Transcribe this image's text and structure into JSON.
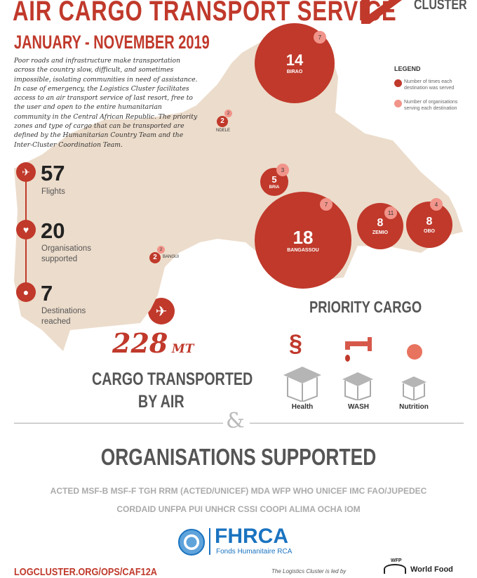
{
  "header": {
    "title": "AIR CARGO TRANSPORT SERVICE",
    "subtitle": "JANUARY - NOVEMBER 2019",
    "logo_text": "CLUSTER",
    "intro": "Poor roads and infrastructure make transportation across the country slow, difficult, and sometimes impossible, isolating communities in need of assistance. In case of emergency, the Logistics Cluster facilitates access to an air transport service of last resort, free to the user and open to the entire humanitarian community in the Central African Republic. The priority zones and type of cargo that can be transported are defined by the Humanitarian Country Team and the Inter-Cluster Coordination Team."
  },
  "colors": {
    "accent": "#c0392b",
    "badge": "#f1948a",
    "map": "#ecdccb",
    "text_gray": "#555555"
  },
  "legend": {
    "title": "LEGEND",
    "items": [
      {
        "label": "Number of times each destination was served",
        "color": "#c0392b"
      },
      {
        "label": "Number of organisations serving each destination",
        "color": "#f1948a"
      }
    ]
  },
  "destinations": [
    {
      "name": "BIRAO",
      "served": "14",
      "orgs": "7"
    },
    {
      "name": "NDELE",
      "served": "2",
      "orgs": "2"
    },
    {
      "name": "BRIA",
      "served": "5",
      "orgs": "3"
    },
    {
      "name": "BANGASSOU",
      "served": "18",
      "orgs": "7"
    },
    {
      "name": "ZEMIO",
      "served": "8",
      "orgs": "11"
    },
    {
      "name": "OBO",
      "served": "8",
      "orgs": "4"
    },
    {
      "name": "BANGUI",
      "served": "2",
      "orgs": "2"
    }
  ],
  "stats": [
    {
      "value": "57",
      "label": "Flights",
      "icon": "airplane-icon"
    },
    {
      "value": "20",
      "label": "Organisations supported",
      "icon": "handshake-icon"
    },
    {
      "value": "7",
      "label": "Destinations reached",
      "icon": "location-pin-icon"
    }
  ],
  "cargo": {
    "value": "228",
    "unit": "MT",
    "label_line1": "CARGO TRANSPORTED",
    "label_line2": "BY AIR"
  },
  "priority": {
    "title": "PRIORITY CARGO",
    "items": [
      {
        "label": "Health",
        "icon": "caduceus-icon"
      },
      {
        "label": "WASH",
        "icon": "water-tap-icon"
      },
      {
        "label": "Nutrition",
        "icon": "child-spoon-icon"
      }
    ]
  },
  "ampersand": "&",
  "organisations": {
    "title": "ORGANISATIONS SUPPORTED",
    "line1": "ACTED MSF-B MSF-F TGH RRM (ACTED/UNICEF) MDA WFP WHO UNICEF IMC FAO/JUPEDEC",
    "line2": "CORDAID UNFPA PUI UNHCR CSSI COOPI ALIMA OCHA IOM"
  },
  "donor": {
    "name": "FHRCA",
    "sub": "Fonds Humanitaire RCA"
  },
  "footer": {
    "link": "LOGCLUSTER.ORG/OPS/CAF12A",
    "led_by": "The Logistics Cluster is led by",
    "wfp_small": "WFP",
    "wfp_name": "World Food"
  }
}
